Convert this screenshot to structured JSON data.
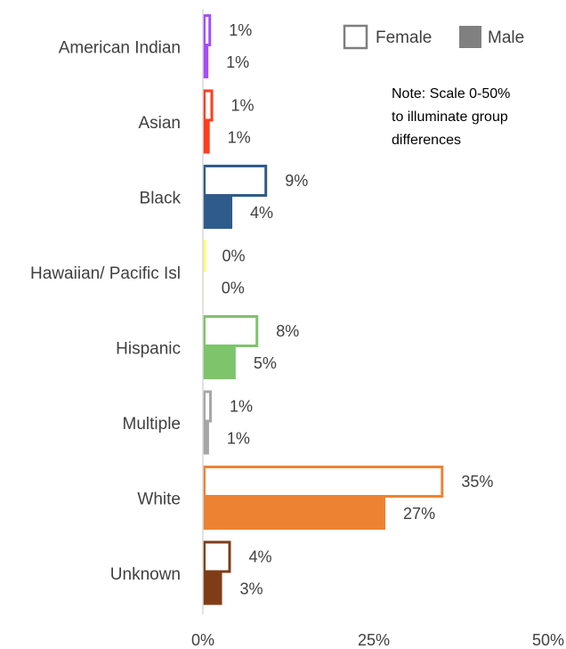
{
  "chart_data": {
    "type": "bar",
    "orientation": "horizontal",
    "categories": [
      "American Indian",
      "Asian",
      "Black",
      "Hawaiian/ Pacific Isl",
      "Hispanic",
      "Multiple",
      "White",
      "Unknown"
    ],
    "series": [
      {
        "name": "Female",
        "style": "outline",
        "values": [
          1,
          1,
          9,
          0,
          8,
          1,
          35,
          4
        ],
        "labels": [
          "1%",
          "1%",
          "9%",
          "0%",
          "8%",
          "1%",
          "35%",
          "4%"
        ]
      },
      {
        "name": "Male",
        "style": "filled",
        "values": [
          1,
          1,
          4,
          0,
          5,
          1,
          27,
          3
        ],
        "labels": [
          "1%",
          "1%",
          "4%",
          "0%",
          "5%",
          "1%",
          "27%",
          "3%"
        ]
      }
    ],
    "category_colors": [
      "#a64dff",
      "#ff3d1f",
      "#2f5b8c",
      "#ffff66",
      "#7dc46b",
      "#a6a6a6",
      "#ee8233",
      "#7f3d17"
    ],
    "actual_values": {
      "Female": [
        1.2,
        1.5,
        9.4,
        0.2,
        8.1,
        1.3,
        35.2,
        4.1
      ],
      "Male": [
        0.8,
        1.0,
        4.3,
        0.1,
        4.8,
        0.9,
        26.7,
        2.8
      ]
    },
    "xlim": [
      0,
      50
    ],
    "x_ticks": [
      "0%",
      "25%",
      "50%"
    ],
    "x_tick_values": [
      0,
      25,
      50
    ],
    "legend": {
      "position": "top-right",
      "female": "Female",
      "male": "Male",
      "swatch_outline": "#7f7f7f",
      "swatch_fill": "#808080"
    },
    "note_lines": [
      "Note: Scale 0-50%",
      "to illuminate group",
      "differences"
    ]
  }
}
